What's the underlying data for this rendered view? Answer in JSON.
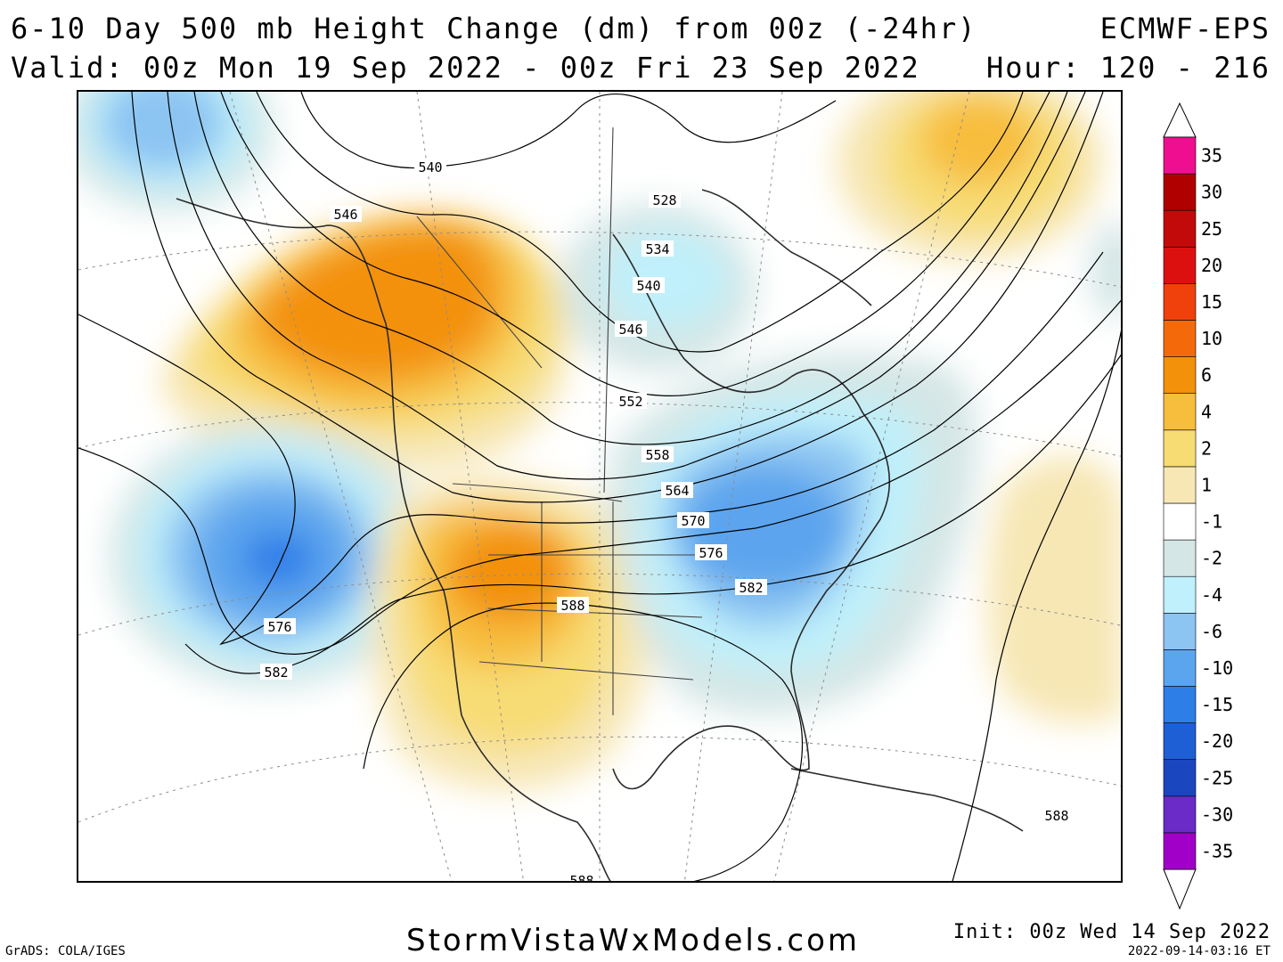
{
  "header": {
    "title": "6-10 Day 500 mb Height Change (dm) from 00z (-24hr)",
    "model": "ECMWF-EPS",
    "valid": "Valid: 00z Mon 19 Sep 2022 - 00z Fri 23 Sep 2022",
    "hour": "Hour: 120 - 216"
  },
  "footer": {
    "grads": "GrADS: COLA/IGES",
    "site": "StormVistaWxModels.com",
    "init": "Init: 00z Wed 14 Sep 2022",
    "stamp": "2022-09-14-03:16 ET"
  },
  "legend": {
    "colors": [
      "#a000c8",
      "#6a2bc8",
      "#1a47c0",
      "#1f5fd6",
      "#2e7ee8",
      "#5ba4ee",
      "#8cc4f2",
      "#bff0fb",
      "#d4e6e5",
      "#ffffff",
      "#f7e7b5",
      "#f7dc74",
      "#f7bd3c",
      "#f3910a",
      "#f46a0a",
      "#f0400c",
      "#dd1010",
      "#c20a0a",
      "#b00000",
      "#f00e90"
    ],
    "ticks": [
      "-35",
      "-30",
      "-25",
      "-20",
      "-15",
      "-10",
      "-6",
      "-4",
      "-2",
      "-1",
      "1",
      "2",
      "4",
      "6",
      "10",
      "15",
      "20",
      "25",
      "30",
      "35"
    ]
  },
  "contour_labels": [
    "540",
    "546",
    "528",
    "534",
    "540",
    "546",
    "552",
    "558",
    "564",
    "570",
    "576",
    "582",
    "588",
    "576",
    "582",
    "588",
    "588"
  ]
}
